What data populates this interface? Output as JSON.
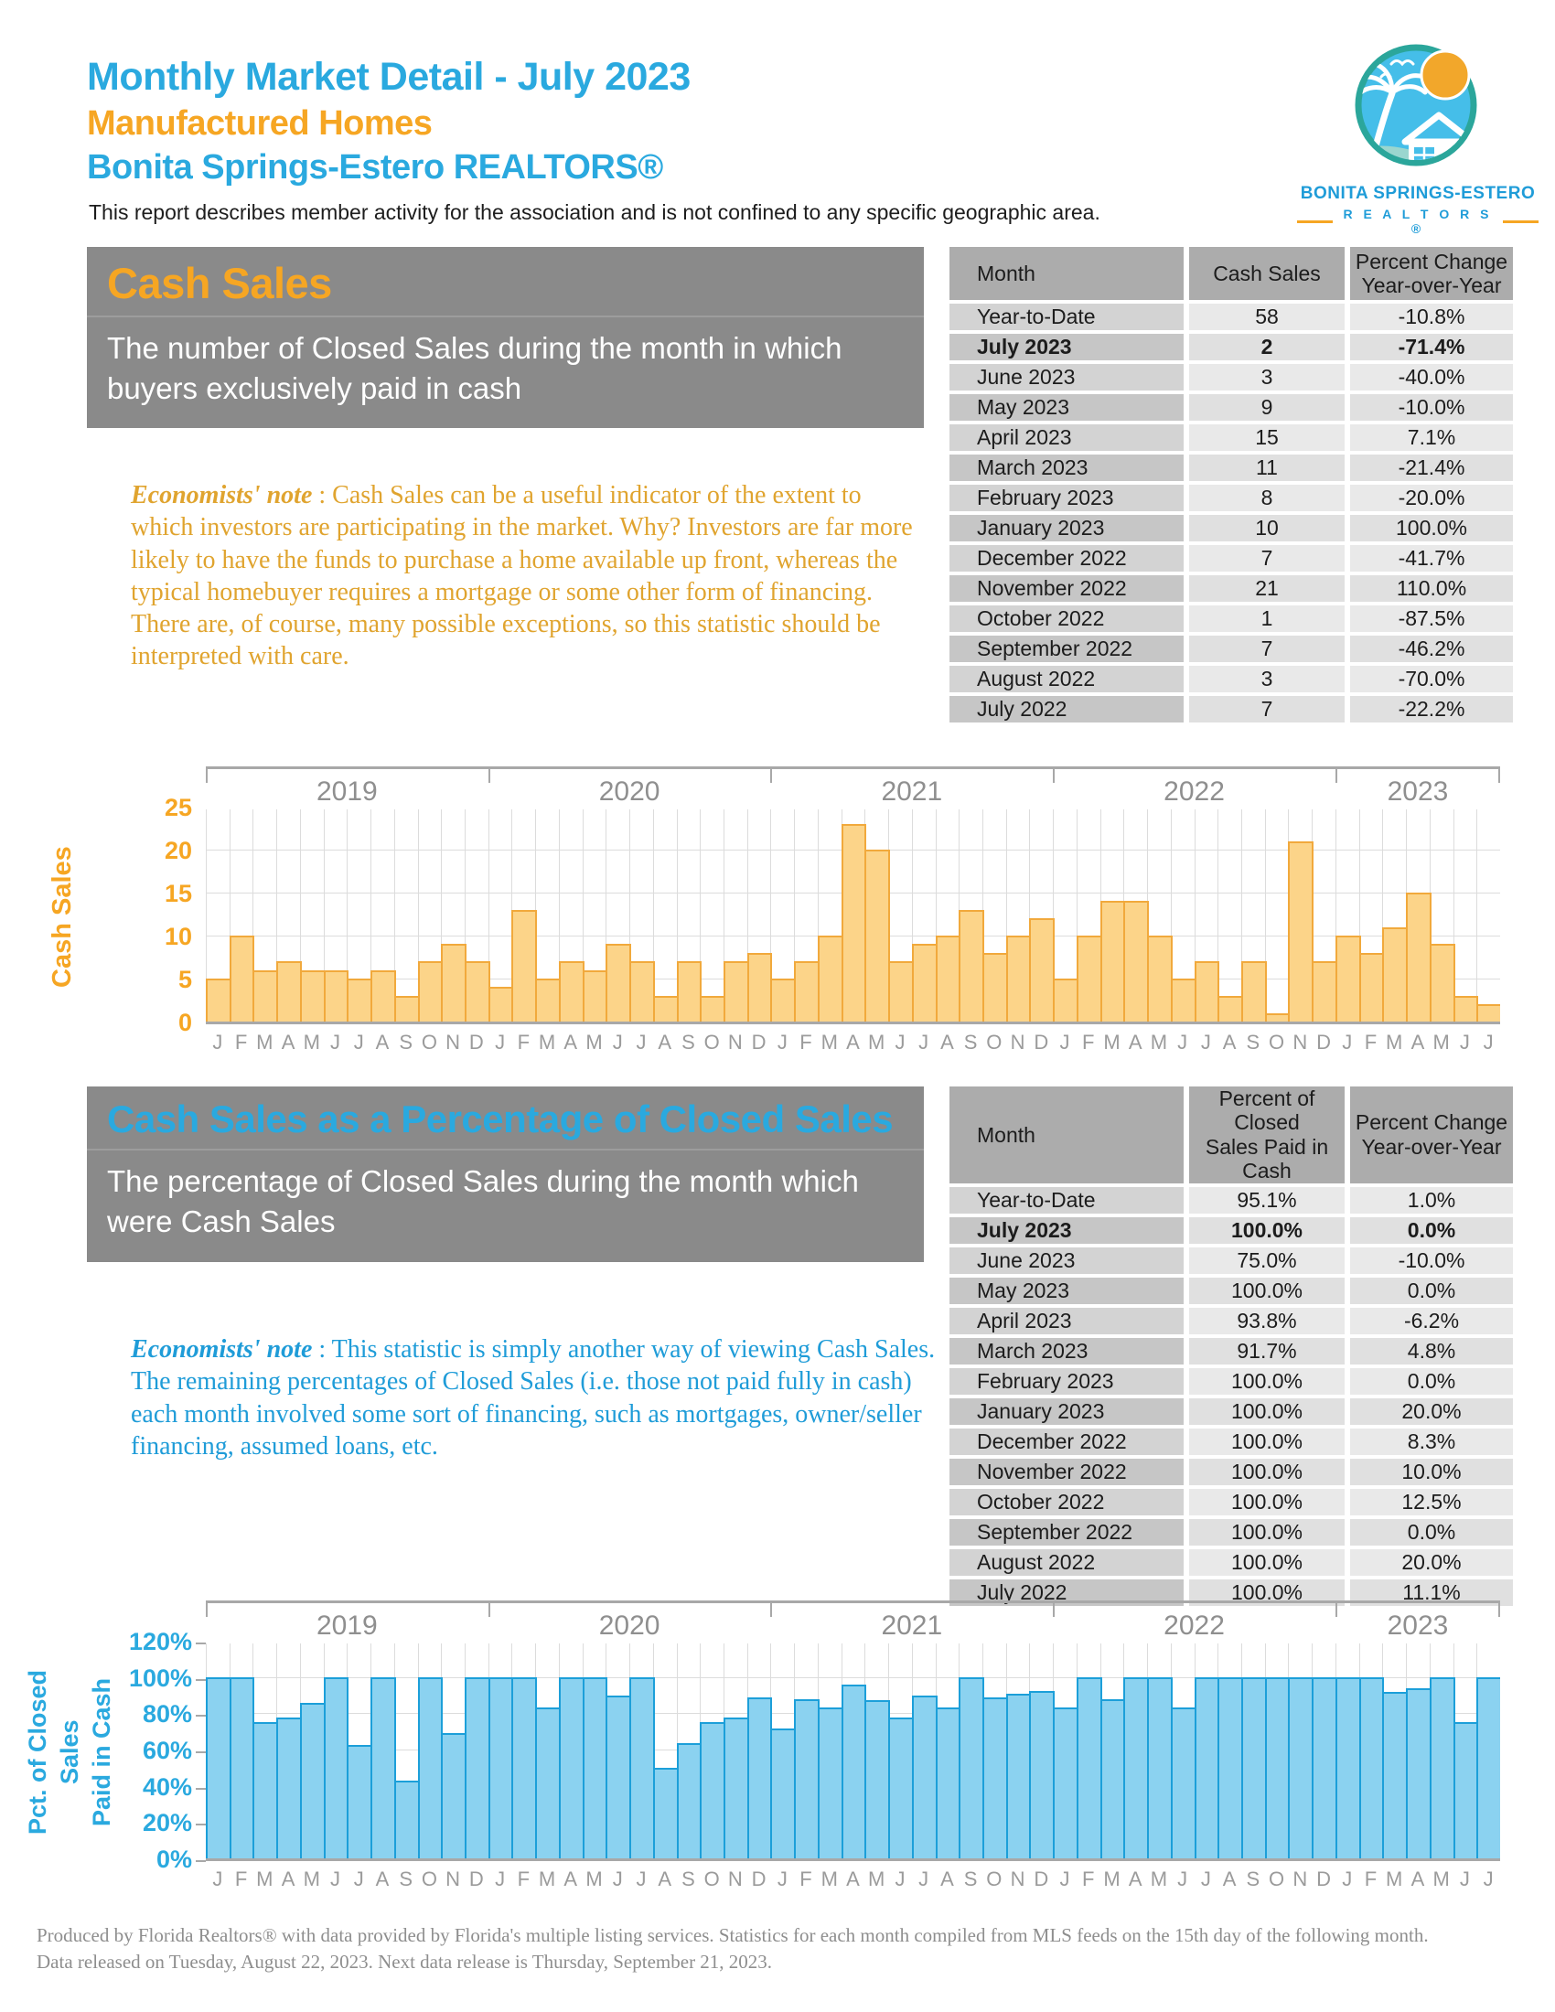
{
  "header": {
    "title": "Monthly Market Detail - July 2023",
    "subtitle": "Manufactured Homes",
    "association": "Bonita Springs-Estero REALTORS®",
    "disclaimer": "This report describes member activity for the association and is not confined to any specific geographic area."
  },
  "logo": {
    "line1": "BONITA SPRINGS-ESTERO",
    "line2": "R E A L T O R S ®"
  },
  "colors": {
    "cyan": "#2AA9DF",
    "orange": "#F6A623",
    "section_box_gray": "#8A8A8A",
    "bar1_fill": "#FCD489",
    "bar1_border": "#F1A93C",
    "bar2_fill": "#8BD2F0",
    "bar2_border": "#1C9FD9"
  },
  "section1": {
    "title": "Cash Sales",
    "subtitle": "The number of Closed Sales during the month in which buyers exclusively paid in cash",
    "note_label": "Economists' note",
    "note_body": " :  Cash Sales can be a useful indicator of the extent to which investors are participating in the market.  Why?  Investors are far more likely to have the funds to purchase a home available up front, whereas the typical homebuyer requires a mortgage or some other form of financing.  There are, of course, many possible exceptions, so this statistic should be interpreted with care.",
    "table": {
      "id": 1,
      "headers": [
        "Month",
        "Cash Sales",
        "Percent Change\nYear-over-Year"
      ],
      "rows": [
        [
          "Year-to-Date",
          "58",
          "-10.8%",
          false
        ],
        [
          "July 2023",
          "2",
          "-71.4%",
          true
        ],
        [
          "June 2023",
          "3",
          "-40.0%",
          false
        ],
        [
          "May 2023",
          "9",
          "-10.0%",
          false
        ],
        [
          "April 2023",
          "15",
          "7.1%",
          false
        ],
        [
          "March 2023",
          "11",
          "-21.4%",
          false
        ],
        [
          "February 2023",
          "8",
          "-20.0%",
          false
        ],
        [
          "January 2023",
          "10",
          "100.0%",
          false
        ],
        [
          "December 2022",
          "7",
          "-41.7%",
          false
        ],
        [
          "November 2022",
          "21",
          "110.0%",
          false
        ],
        [
          "October 2022",
          "1",
          "-87.5%",
          false
        ],
        [
          "September 2022",
          "7",
          "-46.2%",
          false
        ],
        [
          "August 2022",
          "3",
          "-70.0%",
          false
        ],
        [
          "July 2022",
          "7",
          "-22.2%",
          false
        ]
      ]
    }
  },
  "section2": {
    "title": "Cash Sales as a Percentage of Closed Sales",
    "subtitle": "The percentage of Closed Sales during the month which were Cash Sales",
    "note_label": "Economists' note",
    "note_body": " :  This statistic is simply another way of viewing Cash Sales.  The remaining percentages of Closed Sales (i.e. those not paid fully in cash) each month involved some sort of financing, such as mortgages, owner/seller financing, assumed loans, etc.",
    "table": {
      "id": 2,
      "headers": [
        "Month",
        "Percent of Closed\nSales Paid in Cash",
        "Percent Change\nYear-over-Year"
      ],
      "rows": [
        [
          "Year-to-Date",
          "95.1%",
          "1.0%",
          false
        ],
        [
          "July 2023",
          "100.0%",
          "0.0%",
          true
        ],
        [
          "June 2023",
          "75.0%",
          "-10.0%",
          false
        ],
        [
          "May 2023",
          "100.0%",
          "0.0%",
          false
        ],
        [
          "April 2023",
          "93.8%",
          "-6.2%",
          false
        ],
        [
          "March 2023",
          "91.7%",
          "4.8%",
          false
        ],
        [
          "February 2023",
          "100.0%",
          "0.0%",
          false
        ],
        [
          "January 2023",
          "100.0%",
          "20.0%",
          false
        ],
        [
          "December 2022",
          "100.0%",
          "8.3%",
          false
        ],
        [
          "November 2022",
          "100.0%",
          "10.0%",
          false
        ],
        [
          "October 2022",
          "100.0%",
          "12.5%",
          false
        ],
        [
          "September 2022",
          "100.0%",
          "0.0%",
          false
        ],
        [
          "August 2022",
          "100.0%",
          "20.0%",
          false
        ],
        [
          "July 2022",
          "100.0%",
          "11.1%",
          false
        ]
      ]
    }
  },
  "chart_data": [
    {
      "id": 1,
      "type": "bar",
      "title": "",
      "xlabel": "",
      "ylabel": "Cash Sales",
      "ylim": [
        0,
        25
      ],
      "ymax": 25,
      "grid": true,
      "legend": "none",
      "ytick_values": [
        0,
        5,
        10,
        15,
        20,
        25
      ],
      "ytick_labels": [
        "0",
        "5",
        "10",
        "15",
        "20",
        "25"
      ],
      "years": [
        "2019",
        "2020",
        "2021",
        "2022",
        "2023"
      ],
      "year_boundaries": [
        0,
        12,
        24,
        36,
        48,
        55
      ],
      "month_initials": [
        "J",
        "F",
        "M",
        "A",
        "M",
        "J",
        "J",
        "A",
        "S",
        "O",
        "N",
        "D"
      ],
      "series": [
        {
          "name": "Cash Sales",
          "values": [
            5,
            10,
            6,
            7,
            6,
            6,
            5,
            6,
            3,
            7,
            9,
            7,
            4,
            13,
            5,
            7,
            6,
            9,
            7,
            3,
            7,
            3,
            7,
            8,
            5,
            7,
            10,
            23,
            20,
            7,
            9,
            10,
            13,
            8,
            10,
            12,
            5,
            10,
            14,
            14,
            10,
            5,
            7,
            3,
            7,
            1,
            21,
            7,
            10,
            8,
            11,
            15,
            9,
            3,
            2
          ]
        }
      ]
    },
    {
      "id": 2,
      "type": "bar",
      "title": "",
      "xlabel": "",
      "ylabel": "Pct. of Closed Sales\nPaid in Cash",
      "ylim": [
        0,
        120
      ],
      "ymax": 120,
      "grid": true,
      "legend": "none",
      "ytick_values": [
        0,
        20,
        40,
        60,
        80,
        100,
        120
      ],
      "ytick_labels": [
        "0%",
        "20%",
        "40%",
        "60%",
        "80%",
        "100%",
        "120%"
      ],
      "years": [
        "2019",
        "2020",
        "2021",
        "2022",
        "2023"
      ],
      "year_boundaries": [
        0,
        12,
        24,
        36,
        48,
        55
      ],
      "month_initials": [
        "J",
        "F",
        "M",
        "A",
        "M",
        "J",
        "J",
        "A",
        "S",
        "O",
        "N",
        "D"
      ],
      "series": [
        {
          "name": "Pct. of Closed Sales Paid in Cash",
          "values": [
            100,
            100,
            75,
            77.8,
            85.7,
            100,
            62.5,
            100,
            42.9,
            100,
            69.2,
            100,
            100,
            100,
            83.3,
            100,
            100,
            90,
            100,
            50,
            63.6,
            75,
            77.8,
            88.9,
            71.4,
            87.5,
            83.3,
            95.8,
            87,
            77.8,
            90,
            83.3,
            100,
            88.9,
            90.9,
            92.3,
            83.3,
            100,
            87.5,
            100,
            100,
            83.3,
            100,
            100,
            100,
            100,
            100,
            100,
            100,
            100,
            91.7,
            93.8,
            100,
            75,
            100
          ]
        }
      ]
    }
  ],
  "footer": {
    "line1": "Produced by Florida Realtors® with data provided by Florida's multiple listing services. Statistics for each month compiled from MLS feeds on the 15th day of the following month.",
    "line2": "Data released on Tuesday, August 22, 2023. Next data release is Thursday, September 21, 2023."
  }
}
